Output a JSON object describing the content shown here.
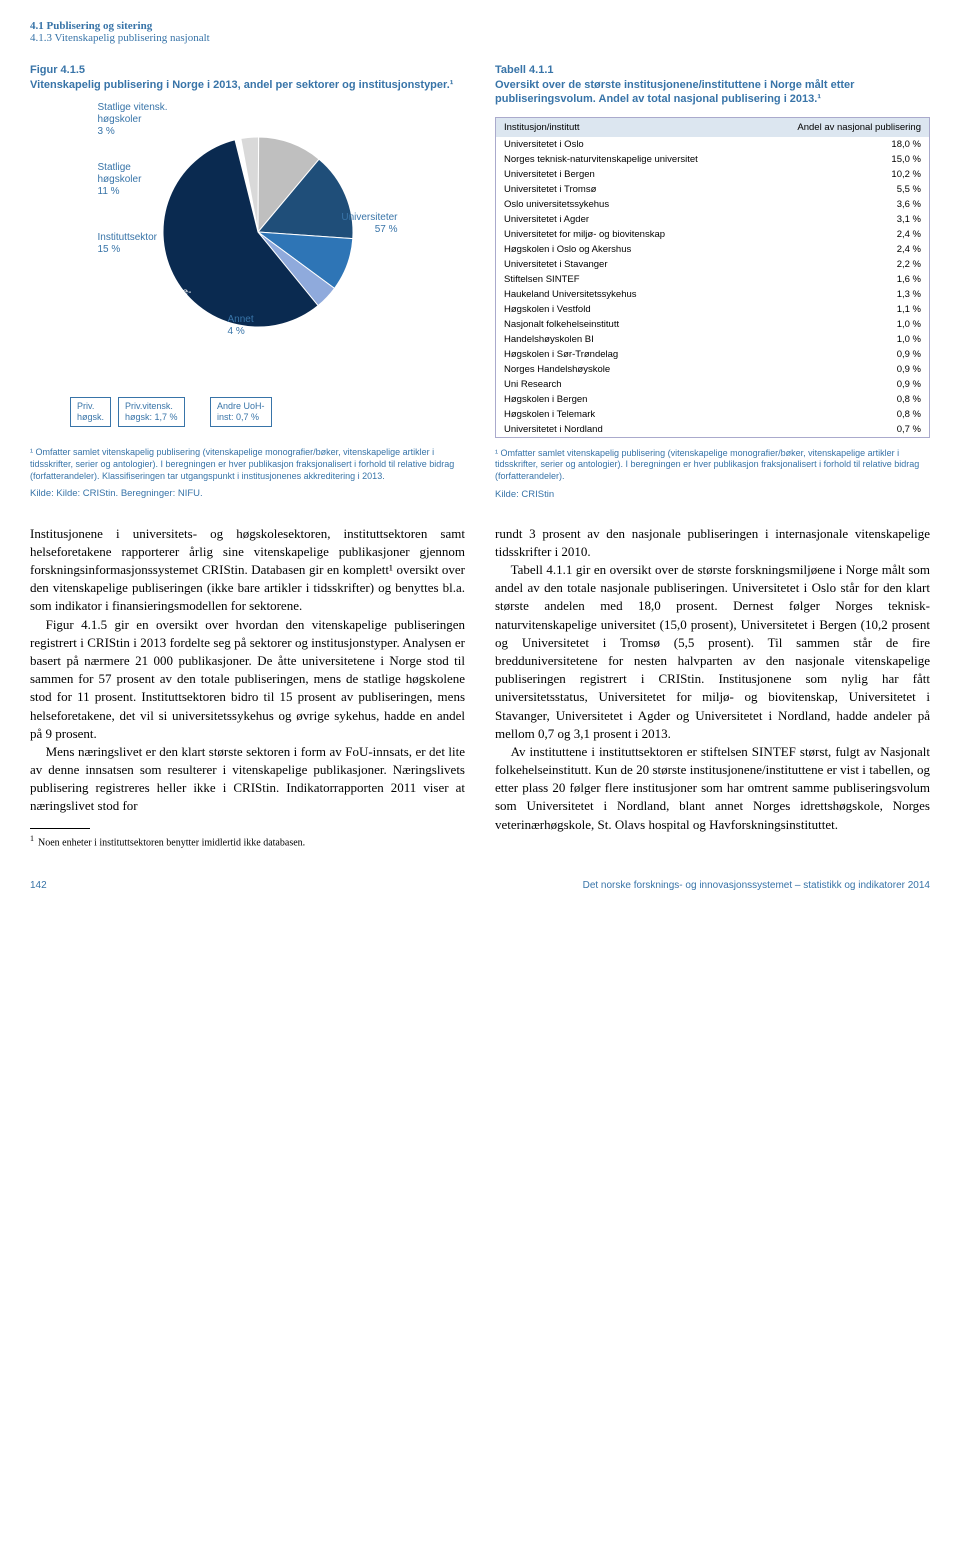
{
  "header": {
    "l1": "4.1 Publisering og sitering",
    "l2": "4.1.3 Vitenskapelig publisering nasjonalt"
  },
  "figure": {
    "title": "Figur 4.1.5",
    "subtitle": "Vitenskapelig publisering i Norge i 2013, andel per sektorer og institusjonstyper.¹",
    "type": "pie",
    "slices": [
      {
        "label": "Statlige vitensk. høgskoler",
        "value": 3,
        "color": "#d9d9d9"
      },
      {
        "label": "Statlige høgskoler",
        "value": 11,
        "color": "#bfbfbf"
      },
      {
        "label": "Instituttsektor",
        "value": 15,
        "color": "#1f4e79"
      },
      {
        "label": "Helseforetak",
        "value": 9,
        "color": "#2e75b6"
      },
      {
        "label": "Annet",
        "value": 4,
        "color": "#8faadc"
      },
      {
        "label": "Universiteter",
        "value": 57,
        "color": "#0a2a50"
      }
    ],
    "labels": {
      "l_svh": "Statlige vitensk.\nhøgskoler\n3 %",
      "l_sh": "Statlige\nhøgskoler\n11 %",
      "l_inst": "Instituttsektor\n15 %",
      "l_helse": "Helse-\nforetak\n9 %",
      "l_annet": "Annet\n4 %",
      "l_univ": "Universiteter\n57 %"
    },
    "callouts": {
      "c1": "Priv.\nhøgsk.",
      "c2": "Priv.vitensk.\nhøgsk: 1,7 %",
      "c3": "Andre UoH-\ninst: 0,7 %"
    },
    "footnote": "¹ Omfatter samlet vitenskapelig publisering (vitenskapelige monografier/bøker, vitenskapelige artikler i tidsskrifter, serier og antologier). I beregningen er hver publikasjon fraksjonalisert i forhold til relative bidrag (forfatterandeler). Klassifiseringen tar utgangspunkt i institusjonenes akkreditering i 2013.",
    "source": "Kilde: Kilde: CRIStin. Beregninger: NIFU."
  },
  "table": {
    "title": "Tabell 4.1.1",
    "subtitle": "Oversikt over de største institusjonene/instituttene i Norge målt etter publiseringsvolum. Andel av total nasjonal publisering i 2013.¹",
    "col1": "Institusjon/institutt",
    "col2": "Andel av nasjonal publisering",
    "rows": [
      [
        "Universitetet i Oslo",
        "18,0 %"
      ],
      [
        "Norges teknisk-naturvitenskapelige universitet",
        "15,0 %"
      ],
      [
        "Universitetet i Bergen",
        "10,2 %"
      ],
      [
        "Universitetet i Tromsø",
        "5,5 %"
      ],
      [
        "Oslo universitetssykehus",
        "3,6 %"
      ],
      [
        "Universitetet i Agder",
        "3,1 %"
      ],
      [
        "Universitetet for miljø- og biovitenskap",
        "2,4 %"
      ],
      [
        "Høgskolen i Oslo og Akershus",
        "2,4 %"
      ],
      [
        "Universitetet i Stavanger",
        "2,2 %"
      ],
      [
        "Stiftelsen SINTEF",
        "1,6 %"
      ],
      [
        "Haukeland Universitetssykehus",
        "1,3 %"
      ],
      [
        "Høgskolen i Vestfold",
        "1,1 %"
      ],
      [
        "Nasjonalt folkehelseinstitutt",
        "1,0 %"
      ],
      [
        "Handelshøyskolen BI",
        "1,0 %"
      ],
      [
        "Høgskolen i Sør-Trøndelag",
        "0,9 %"
      ],
      [
        "Norges Handelshøyskole",
        "0,9 %"
      ],
      [
        "Uni Research",
        "0,9 %"
      ],
      [
        "Høgskolen i Bergen",
        "0,8 %"
      ],
      [
        "Høgskolen i Telemark",
        "0,8 %"
      ],
      [
        "Universitetet i Nordland",
        "0,7 %"
      ]
    ],
    "footnote": "¹ Omfatter samlet vitenskapelig publisering (vitenskapelige monografier/bøker, vitenskapelige artikler i tidsskrifter, serier og antologier). I beregningen er hver publikasjon fraksjonalisert i forhold til relative bidrag (forfatterandeler).",
    "source": "Kilde: CRIStin"
  },
  "body": {
    "left_p1": "Institusjonene i universitets- og høgskolesektoren, instituttsektoren samt helseforetakene rapporterer årlig sine vitenskapelige publikasjoner gjennom forskningsinformasjonssystemet CRIStin. Databasen gir en komplett¹ oversikt over den vitenskapelige publiseringen (ikke bare artikler i tidsskrifter) og benyttes bl.a. som indikator i finansieringsmodellen for sektorene.",
    "left_p2": "Figur 4.1.5 gir en oversikt over hvordan den vitenskapelige publiseringen registrert i CRIStin i 2013 fordelte seg på sektorer og institusjonstyper. Analysen er basert på nærmere 21 000 publikasjoner. De åtte universitetene i Norge stod til sammen for 57 prosent av den totale publiseringen, mens de statlige høgskolene stod for 11 prosent. Instituttsektoren bidro til 15 prosent av publiseringen, mens helseforetakene, det vil si universitetssykehus og øvrige sykehus, hadde en andel på 9 prosent.",
    "left_p3": "Mens næringslivet er den klart største sektoren i form av FoU-innsats, er det lite av denne innsatsen som resulterer i vitenskapelige publikasjoner. Næringslivets publisering registreres heller ikke i CRIStin. Indikatorrapporten 2011 viser at næringslivet stod for",
    "left_fn": "Noen enheter i instituttsektoren benytter imidlertid ikke databasen.",
    "right_p1": "rundt 3 prosent av den nasjonale publiseringen i internasjonale vitenskapelige tidsskrifter i 2010.",
    "right_p2": "Tabell 4.1.1 gir en oversikt over de største forskningsmiljøene i Norge målt som andel av den totale nasjonale publiseringen. Universitetet i Oslo står for den klart største andelen med 18,0 prosent. Dernest følger Norges teknisk-naturvitenskapelige universitet (15,0 prosent), Universitetet i Bergen (10,2 prosent og Universitetet i Tromsø (5,5 prosent). Til sammen står de fire bredduniversitetene for nesten halvparten av den nasjonale vitenskapelige publiseringen registrert i CRIStin. Institusjonene som nylig har fått universitetsstatus, Universitetet for miljø- og biovitenskap, Universitetet i Stavanger, Universitetet i Agder og Universitetet i Nordland, hadde andeler på mellom 0,7 og 3,1 prosent i 2013.",
    "right_p3": "Av instituttene i instituttsektoren er stiftelsen SINTEF størst, fulgt av Nasjonalt folkehelseinstitutt. Kun de 20 største institusjonene/instituttene er vist i tabellen, og etter plass 20 følger flere institusjoner som har omtrent samme publiseringsvolum som Universitetet i Nordland, blant annet Norges idrettshøgskole, Norges veterinærhøgskole, St. Olavs hospital og Havforskningsinstituttet."
  },
  "footer": {
    "page": "142",
    "text": "Det norske forsknings- og innovasjonssystemet – statistikk og indikatorer 2014"
  }
}
